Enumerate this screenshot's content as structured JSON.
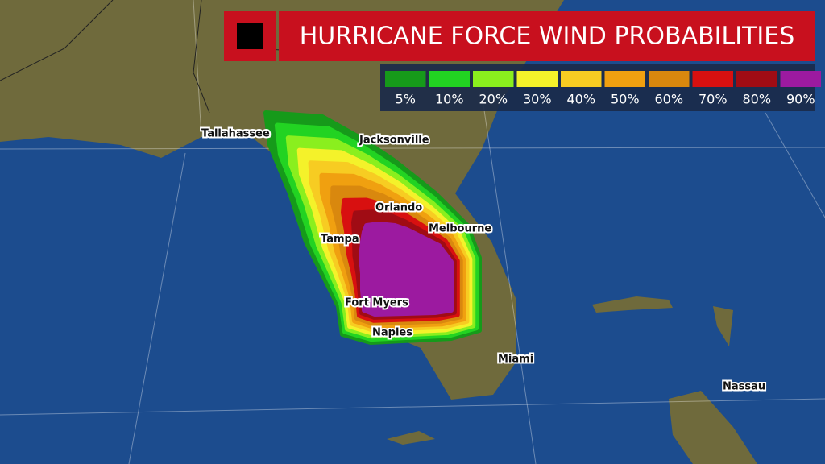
{
  "title": "HURRICANE FORCE WIND PROBABILITIES",
  "legend": [
    {
      "label": "5%",
      "color": "#169a1a"
    },
    {
      "label": "10%",
      "color": "#22d322"
    },
    {
      "label": "20%",
      "color": "#8aef1e"
    },
    {
      "label": "30%",
      "color": "#f4f22a"
    },
    {
      "label": "40%",
      "color": "#f7cc22"
    },
    {
      "label": "50%",
      "color": "#f0a010"
    },
    {
      "label": "60%",
      "color": "#d9880e"
    },
    {
      "label": "70%",
      "color": "#d81010"
    },
    {
      "label": "80%",
      "color": "#a00c14"
    },
    {
      "label": "90%",
      "color": "#9c1aa0"
    }
  ],
  "cities": [
    "Tallahassee",
    "Jacksonville",
    "Orlando",
    "Melbourne",
    "Tampa",
    "Fort Myers",
    "Naples",
    "Miami",
    "Nassau"
  ]
}
